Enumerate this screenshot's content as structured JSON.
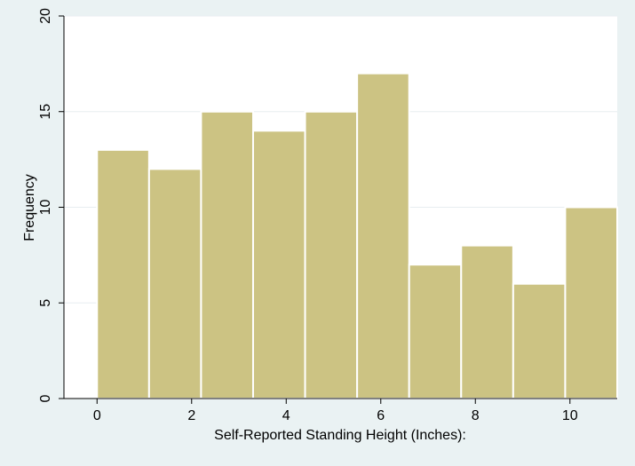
{
  "chart_data": {
    "type": "bar",
    "subtype": "histogram",
    "xlabel": "Self-Reported Standing Height (Inches):",
    "ylabel": "Frequency",
    "x_ticks": [
      0,
      2,
      4,
      6,
      8,
      10
    ],
    "y_ticks": [
      0,
      5,
      10,
      15,
      20
    ],
    "xlim": [
      -0.7,
      11.0
    ],
    "ylim": [
      0,
      20
    ],
    "grid": "horizontal",
    "bins": [
      {
        "start": 0.0,
        "end": 1.1,
        "value": 13
      },
      {
        "start": 1.1,
        "end": 2.2,
        "value": 12
      },
      {
        "start": 2.2,
        "end": 3.3,
        "value": 15
      },
      {
        "start": 3.3,
        "end": 4.4,
        "value": 14
      },
      {
        "start": 4.4,
        "end": 5.5,
        "value": 15
      },
      {
        "start": 5.5,
        "end": 6.6,
        "value": 17
      },
      {
        "start": 6.6,
        "end": 7.7,
        "value": 7
      },
      {
        "start": 7.7,
        "end": 8.8,
        "value": 8
      },
      {
        "start": 8.8,
        "end": 9.9,
        "value": 6
      },
      {
        "start": 9.9,
        "end": 11.0,
        "value": 10
      }
    ],
    "colors": {
      "bar_fill": "#ccc383",
      "bar_stroke": "#ffffff",
      "plot_background": "#ffffff",
      "outer_background": "#eaf2f3",
      "grid": "#e8eef0",
      "axis": "#000000"
    }
  }
}
